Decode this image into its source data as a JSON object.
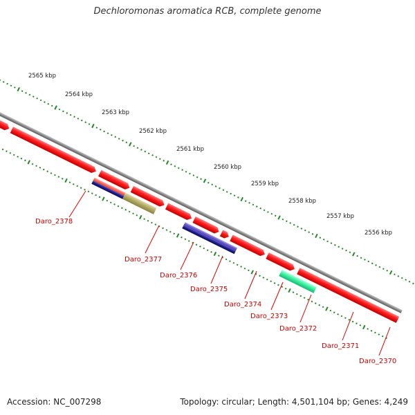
{
  "title": "Dechloromonas aromatica RCB, complete genome",
  "accession": "Accession: NC_007298",
  "topology": "Topology: circular; Length: 4,501,104 bp; Genes: 4,249",
  "ruler": [
    "2565 kbp",
    "2564 kbp",
    "2563 kbp",
    "2562 kbp",
    "2561 kbp",
    "2560 kbp",
    "2559 kbp",
    "2558 kbp",
    "2557 kbp",
    "2556 kbp"
  ],
  "genes": [
    "Daro_2378",
    "Daro_2377",
    "Daro_2376",
    "Daro_2375",
    "Daro_2374",
    "Daro_2373",
    "Daro_2372",
    "Daro_2371",
    "Daro_2370"
  ],
  "colors": {
    "backbone": "#8a8a8a",
    "gene_red": "#ff1a1a",
    "cyan_feature": "#33cccc",
    "salmon_feature": "#ff6655",
    "navy_feature": "#1a1a88",
    "olive_feature": "#b0a860",
    "blue_feature": "#6a5acd",
    "aqua_feature": "#33ee99",
    "tick_green": "#228822",
    "label_red": "#cc0000"
  }
}
